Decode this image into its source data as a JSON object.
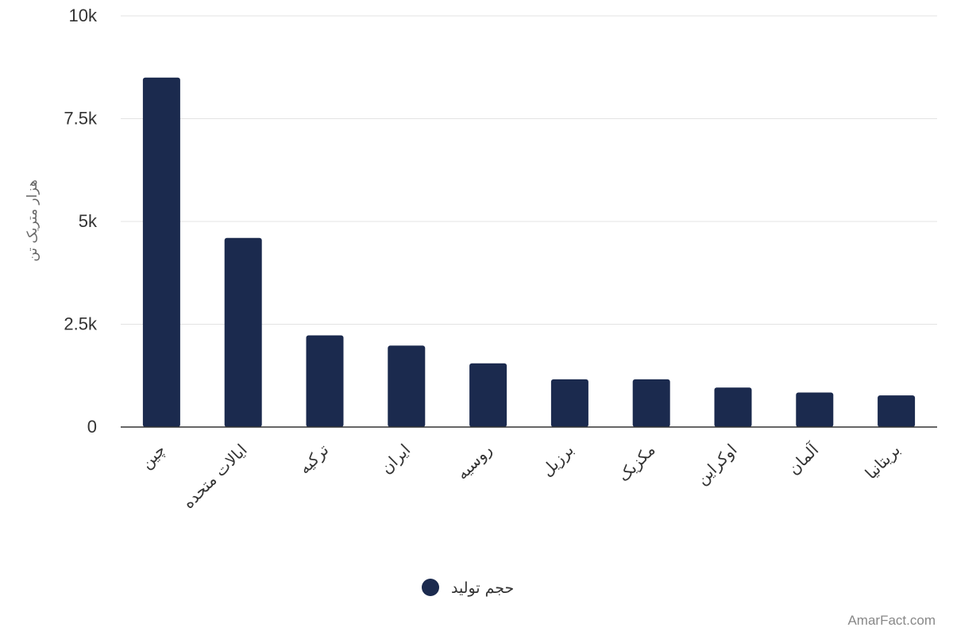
{
  "chart_data": {
    "type": "bar",
    "categories": [
      "چین",
      "ایالات متحده",
      "ترکیه",
      "ایران",
      "روسیه",
      "برزیل",
      "مکزیک",
      "اوکراین",
      "آلمان",
      "بریتانیا"
    ],
    "series": [
      {
        "name": "حجم تولید",
        "color": "#1b2a4e",
        "values": [
          8500,
          4600,
          2230,
          1980,
          1550,
          1160,
          1160,
          960,
          840,
          770
        ]
      }
    ],
    "title": "",
    "xlabel": "",
    "ylabel": "هزار متریک تن",
    "ylim": [
      0,
      10000
    ],
    "yticks": [
      0,
      2500,
      5000,
      7500,
      10000
    ],
    "ytick_labels": [
      "0",
      "2.5k",
      "5k",
      "7.5k",
      "10k"
    ],
    "grid": true,
    "legend": "bottom-center"
  },
  "watermark": "AmarFact.com"
}
